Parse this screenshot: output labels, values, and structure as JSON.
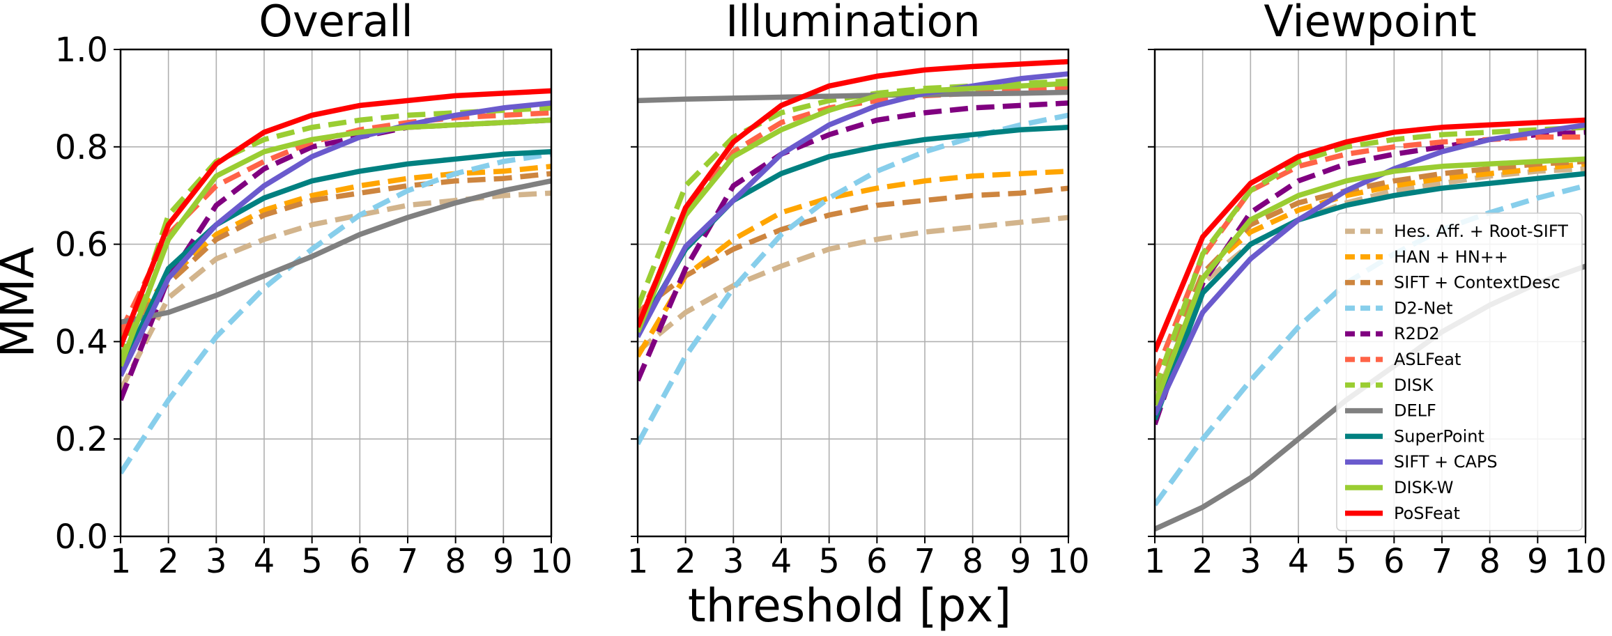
{
  "figure": {
    "ylabel": "MMA",
    "xlabel": "threshold [px]"
  },
  "legend": {
    "entries": [
      {
        "name": "Hes. Aff. + Root-SIFT",
        "color": "#d2b48c",
        "dashed": true
      },
      {
        "name": "HAN + HN++",
        "color": "#ffa500",
        "dashed": true
      },
      {
        "name": "SIFT + ContextDesc",
        "color": "#cd853f",
        "dashed": true
      },
      {
        "name": "D2-Net",
        "color": "#87ceeb",
        "dashed": true
      },
      {
        "name": "R2D2",
        "color": "#800080",
        "dashed": true
      },
      {
        "name": "ASLFeat",
        "color": "#ff6347",
        "dashed": true
      },
      {
        "name": "DISK",
        "color": "#9acd32",
        "dashed": true
      },
      {
        "name": "DELF",
        "color": "#808080",
        "dashed": false
      },
      {
        "name": "SuperPoint",
        "color": "#008080",
        "dashed": false
      },
      {
        "name": "SIFT + CAPS",
        "color": "#6a5acd",
        "dashed": false
      },
      {
        "name": "DISK-W",
        "color": "#9acd32",
        "dashed": false
      },
      {
        "name": "PoSFeat",
        "color": "#ff0000",
        "dashed": false
      }
    ]
  },
  "chart_data": [
    {
      "type": "line",
      "title": "Overall",
      "xlim": [
        1,
        10
      ],
      "ylim": [
        0.0,
        1.0
      ],
      "grid": true,
      "x": [
        1,
        2,
        3,
        4,
        5,
        6,
        7,
        8,
        9,
        10
      ],
      "yticks": [
        "0.0",
        "0.2",
        "0.4",
        "0.6",
        "0.8",
        "1.0"
      ],
      "xticks": [
        "1",
        "2",
        "3",
        "4",
        "5",
        "6",
        "7",
        "8",
        "9",
        "10"
      ],
      "series": [
        {
          "name": "Hes. Aff. + Root-SIFT",
          "values": [
            0.3,
            0.49,
            0.57,
            0.61,
            0.64,
            0.66,
            0.68,
            0.69,
            0.7,
            0.705
          ]
        },
        {
          "name": "HAN + HN++",
          "values": [
            0.42,
            0.53,
            0.62,
            0.67,
            0.7,
            0.72,
            0.735,
            0.745,
            0.75,
            0.76
          ]
        },
        {
          "name": "SIFT + ContextDesc",
          "values": [
            0.41,
            0.52,
            0.61,
            0.66,
            0.69,
            0.705,
            0.72,
            0.73,
            0.735,
            0.745
          ]
        },
        {
          "name": "D2-Net",
          "values": [
            0.13,
            0.28,
            0.41,
            0.51,
            0.59,
            0.66,
            0.71,
            0.745,
            0.77,
            0.785
          ]
        },
        {
          "name": "R2D2",
          "values": [
            0.28,
            0.53,
            0.68,
            0.755,
            0.8,
            0.82,
            0.84,
            0.845,
            0.85,
            0.855
          ]
        },
        {
          "name": "ASLFeat",
          "values": [
            0.42,
            0.62,
            0.72,
            0.77,
            0.81,
            0.835,
            0.85,
            0.86,
            0.865,
            0.87
          ]
        },
        {
          "name": "DISK",
          "values": [
            0.36,
            0.66,
            0.77,
            0.815,
            0.84,
            0.855,
            0.865,
            0.87,
            0.875,
            0.88
          ]
        },
        {
          "name": "DELF",
          "values": [
            0.44,
            0.46,
            0.495,
            0.535,
            0.575,
            0.62,
            0.655,
            0.685,
            0.71,
            0.73
          ]
        },
        {
          "name": "SuperPoint",
          "values": [
            0.34,
            0.55,
            0.64,
            0.695,
            0.73,
            0.75,
            0.765,
            0.775,
            0.785,
            0.79
          ]
        },
        {
          "name": "SIFT + CAPS",
          "values": [
            0.33,
            0.53,
            0.64,
            0.72,
            0.78,
            0.82,
            0.845,
            0.865,
            0.88,
            0.89
          ]
        },
        {
          "name": "DISK-W",
          "values": [
            0.35,
            0.61,
            0.74,
            0.79,
            0.815,
            0.83,
            0.84,
            0.845,
            0.85,
            0.855
          ]
        },
        {
          "name": "PoSFeat",
          "values": [
            0.39,
            0.64,
            0.765,
            0.83,
            0.865,
            0.885,
            0.895,
            0.905,
            0.91,
            0.915
          ]
        }
      ]
    },
    {
      "type": "line",
      "title": "Illumination",
      "xlim": [
        1,
        10
      ],
      "ylim": [
        0.0,
        1.0
      ],
      "grid": true,
      "x": [
        1,
        2,
        3,
        4,
        5,
        6,
        7,
        8,
        9,
        10
      ],
      "xticks": [
        "1",
        "2",
        "3",
        "4",
        "5",
        "6",
        "7",
        "8",
        "9",
        "10"
      ],
      "series": [
        {
          "name": "Hes. Aff. + Root-SIFT",
          "values": [
            0.38,
            0.46,
            0.515,
            0.555,
            0.59,
            0.61,
            0.625,
            0.635,
            0.645,
            0.655
          ]
        },
        {
          "name": "HAN + HN++",
          "values": [
            0.37,
            0.535,
            0.61,
            0.665,
            0.695,
            0.715,
            0.73,
            0.74,
            0.745,
            0.75
          ]
        },
        {
          "name": "SIFT + ContextDesc",
          "values": [
            0.46,
            0.535,
            0.59,
            0.63,
            0.66,
            0.68,
            0.69,
            0.7,
            0.705,
            0.715
          ]
        },
        {
          "name": "D2-Net",
          "values": [
            0.19,
            0.37,
            0.51,
            0.62,
            0.695,
            0.75,
            0.79,
            0.82,
            0.845,
            0.865
          ]
        },
        {
          "name": "R2D2",
          "values": [
            0.32,
            0.55,
            0.72,
            0.785,
            0.825,
            0.855,
            0.87,
            0.88,
            0.885,
            0.89
          ]
        },
        {
          "name": "ASLFeat",
          "values": [
            0.44,
            0.66,
            0.79,
            0.85,
            0.88,
            0.895,
            0.905,
            0.91,
            0.915,
            0.92
          ]
        },
        {
          "name": "DISK",
          "values": [
            0.47,
            0.72,
            0.82,
            0.87,
            0.895,
            0.91,
            0.92,
            0.925,
            0.93,
            0.935
          ]
        },
        {
          "name": "DELF",
          "values": [
            0.895,
            0.898,
            0.9,
            0.902,
            0.904,
            0.906,
            0.907,
            0.909,
            0.91,
            0.912
          ]
        },
        {
          "name": "SuperPoint",
          "values": [
            0.42,
            0.59,
            0.69,
            0.745,
            0.78,
            0.8,
            0.815,
            0.825,
            0.835,
            0.84
          ]
        },
        {
          "name": "SIFT + CAPS",
          "values": [
            0.41,
            0.595,
            0.69,
            0.785,
            0.845,
            0.885,
            0.91,
            0.925,
            0.94,
            0.95
          ]
        },
        {
          "name": "DISK-W",
          "values": [
            0.42,
            0.66,
            0.78,
            0.835,
            0.875,
            0.905,
            0.915,
            0.92,
            0.925,
            0.93
          ]
        },
        {
          "name": "PoSFeat",
          "values": [
            0.43,
            0.675,
            0.81,
            0.885,
            0.925,
            0.945,
            0.958,
            0.965,
            0.97,
            0.975
          ]
        }
      ]
    },
    {
      "type": "line",
      "title": "Viewpoint",
      "xlim": [
        1,
        10
      ],
      "ylim": [
        0.0,
        1.0
      ],
      "grid": true,
      "x": [
        1,
        2,
        3,
        4,
        5,
        6,
        7,
        8,
        9,
        10
      ],
      "xticks": [
        "1",
        "2",
        "3",
        "4",
        "5",
        "6",
        "7",
        "8",
        "9",
        "10"
      ],
      "series": [
        {
          "name": "Hes. Aff. + Root-SIFT",
          "values": [
            0.28,
            0.52,
            0.6,
            0.65,
            0.685,
            0.71,
            0.725,
            0.74,
            0.75,
            0.755
          ]
        },
        {
          "name": "HAN + HN++",
          "values": [
            0.3,
            0.54,
            0.625,
            0.67,
            0.7,
            0.72,
            0.735,
            0.745,
            0.755,
            0.765
          ]
        },
        {
          "name": "SIFT + ContextDesc",
          "values": [
            0.3,
            0.54,
            0.64,
            0.685,
            0.71,
            0.73,
            0.745,
            0.755,
            0.765,
            0.77
          ]
        },
        {
          "name": "D2-Net",
          "values": [
            0.065,
            0.2,
            0.32,
            0.43,
            0.52,
            0.58,
            0.63,
            0.665,
            0.695,
            0.72
          ]
        },
        {
          "name": "R2D2",
          "values": [
            0.23,
            0.52,
            0.665,
            0.73,
            0.765,
            0.785,
            0.8,
            0.815,
            0.825,
            0.83
          ]
        },
        {
          "name": "ASLFeat",
          "values": [
            0.33,
            0.575,
            0.71,
            0.76,
            0.785,
            0.8,
            0.81,
            0.815,
            0.82,
            0.82
          ]
        },
        {
          "name": "DISK",
          "values": [
            0.3,
            0.58,
            0.71,
            0.77,
            0.8,
            0.815,
            0.825,
            0.83,
            0.835,
            0.84
          ]
        },
        {
          "name": "DELF",
          "values": [
            0.015,
            0.06,
            0.12,
            0.2,
            0.28,
            0.35,
            0.42,
            0.475,
            0.52,
            0.555
          ]
        },
        {
          "name": "SuperPoint",
          "values": [
            0.24,
            0.5,
            0.6,
            0.65,
            0.68,
            0.7,
            0.715,
            0.725,
            0.735,
            0.745
          ]
        },
        {
          "name": "SIFT + CAPS",
          "values": [
            0.25,
            0.46,
            0.57,
            0.65,
            0.71,
            0.755,
            0.79,
            0.815,
            0.83,
            0.845
          ]
        },
        {
          "name": "DISK-W",
          "values": [
            0.27,
            0.53,
            0.65,
            0.7,
            0.73,
            0.75,
            0.76,
            0.765,
            0.77,
            0.775
          ]
        },
        {
          "name": "PoSFeat",
          "values": [
            0.38,
            0.615,
            0.725,
            0.78,
            0.81,
            0.83,
            0.84,
            0.845,
            0.85,
            0.855
          ]
        }
      ]
    }
  ]
}
